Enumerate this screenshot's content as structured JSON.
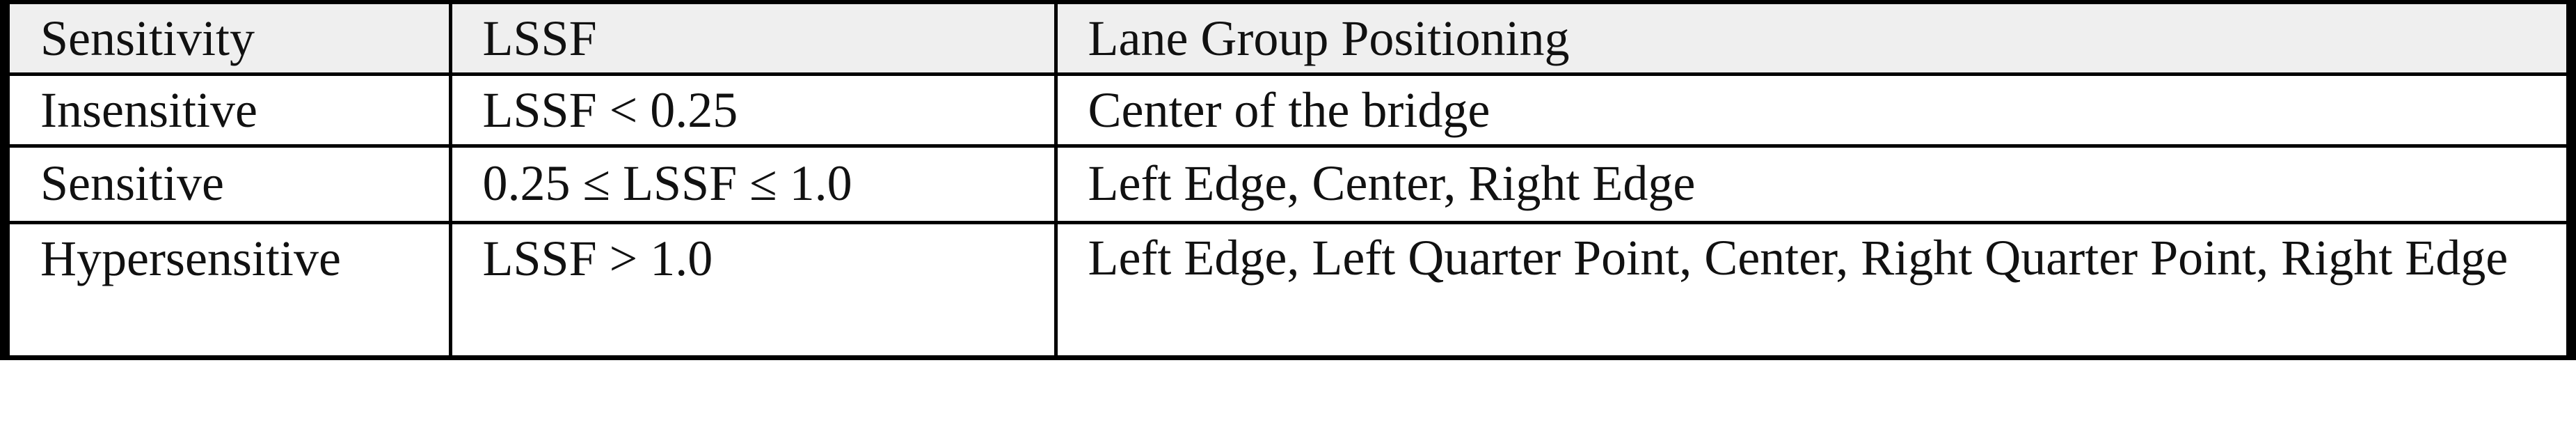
{
  "table": {
    "headers": [
      "Sensitivity",
      "LSSF",
      "Lane Group Positioning"
    ],
    "rows": [
      [
        "Insensitive",
        "LSSF < 0.25",
        "Center of the bridge"
      ],
      [
        "Sensitive",
        "0.25 ≤ LSSF ≤ 1.0",
        "Left Edge, Center, Right Edge"
      ],
      [
        "Hypersensitive",
        "LSSF > 1.0",
        "Left Edge, Left Quarter Point, Center, Right Quarter Point, Right Edge"
      ]
    ]
  },
  "colors": {
    "header_background": "#efefef",
    "border": "#000000",
    "text": "#111111"
  }
}
